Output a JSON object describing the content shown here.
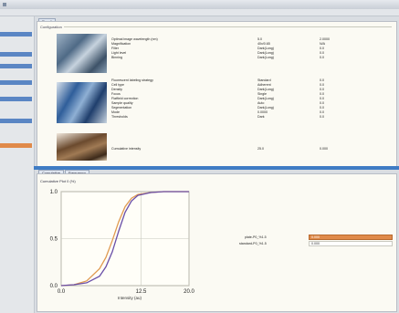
{
  "window": {
    "title": ""
  },
  "tabs": {
    "top_tab": "Result",
    "bottom_tab1": "Cumulative",
    "bottom_tab2": "Frequency"
  },
  "group_header": "Configuration",
  "rows": [
    {
      "label": "Optimal image wavelength (nm)",
      "value": "5.0",
      "unit": "2.0000"
    },
    {
      "label": "Magnification",
      "value": "40x/0.65",
      "unit": "N/A"
    },
    {
      "label": "Filter",
      "value": "Dark(Long)",
      "unit": "0.0"
    },
    {
      "label": "Light level",
      "value": "Dark(Long)",
      "unit": "0.0"
    },
    {
      "label": "Binning",
      "value": "Dark(Long)",
      "unit": "0.0"
    },
    {
      "label": "Fluorescent labeling strategy",
      "value": "Standard",
      "unit": "0.0"
    },
    {
      "label": "Cell type",
      "value": "Adherent",
      "unit": "0.0"
    },
    {
      "label": "Density",
      "value": "Dark(Long)",
      "unit": "0.0"
    },
    {
      "label": "Focus",
      "value": "Single",
      "unit": "0.0"
    },
    {
      "label": "Flatfield correction",
      "value": "Dark(Long)",
      "unit": "0.0"
    },
    {
      "label": "Sample quality",
      "value": "Auto",
      "unit": "0.0"
    },
    {
      "label": "Segmentation",
      "value": "Dark(Long)",
      "unit": "0.0"
    },
    {
      "label": "Mode",
      "value": "0.0000",
      "unit": "0.0"
    },
    {
      "label": "Thresholds",
      "value": "Dark",
      "unit": "0.0"
    },
    {
      "label": "Cumulative intensity",
      "value": "25.0",
      "unit": "0.000"
    }
  ],
  "chart_data": {
    "type": "line",
    "title": "Cumulative Plot 0 (%)",
    "xlabel": "Intensity (au)",
    "ylabel": "",
    "xlim": [
      0,
      20
    ],
    "ylim": [
      0,
      1
    ],
    "x_ticks": [
      "0.0",
      "12.5",
      "20.0"
    ],
    "y_ticks": [
      "1.0",
      "0.5",
      "0.0"
    ],
    "grid": true,
    "series": [
      {
        "name": "",
        "color": "#e09a50",
        "x": [
          0,
          2,
          4,
          6,
          7,
          8,
          9,
          10,
          11,
          12,
          14,
          16,
          20
        ],
        "y": [
          0,
          0.01,
          0.05,
          0.18,
          0.3,
          0.48,
          0.68,
          0.84,
          0.93,
          0.97,
          0.99,
          1.0,
          1.0
        ]
      },
      {
        "name": "",
        "color": "#6a4fa8",
        "x": [
          0,
          2,
          4,
          6,
          7,
          8,
          9,
          10,
          11,
          12,
          14,
          16,
          20
        ],
        "y": [
          0,
          0.01,
          0.03,
          0.1,
          0.2,
          0.36,
          0.58,
          0.78,
          0.9,
          0.96,
          0.99,
          1.0,
          1.0
        ]
      }
    ]
  },
  "readouts": [
    {
      "label": "plate-P0_%1.5",
      "value": "0.000"
    },
    {
      "label": "standard-P0_%1.5",
      "value": "0.000"
    }
  ],
  "colors": {
    "accent": "#3f7cc4",
    "orange": "#e08a4a",
    "panel": "#fbfaf3"
  }
}
